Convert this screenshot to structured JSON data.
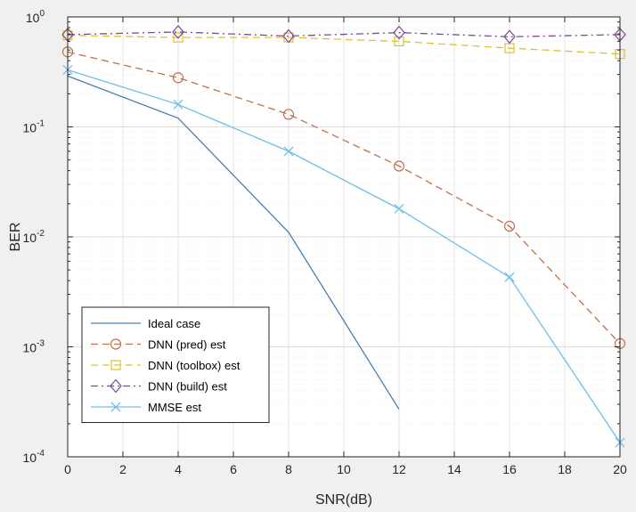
{
  "chart_data": {
    "type": "line",
    "title": "",
    "xlabel": "SNR(dB)",
    "ylabel": "BER",
    "xscale": "linear",
    "yscale": "log",
    "xlim": [
      0,
      20
    ],
    "ylim": [
      0.0001,
      1
    ],
    "xticks": [
      0,
      2,
      4,
      6,
      8,
      10,
      12,
      14,
      16,
      18,
      20
    ],
    "xtick_labels": [
      "0",
      "2",
      "4",
      "6",
      "8",
      "10",
      "12",
      "14",
      "16",
      "18",
      "20"
    ],
    "ytick_exponents": [
      "0",
      "-1",
      "-2",
      "-3",
      "-4"
    ],
    "ytick_base": "10",
    "grid": true,
    "legend_position": "bottom-left",
    "series": [
      {
        "name": "Ideal case",
        "x": [
          0,
          4,
          8,
          12
        ],
        "y": [
          0.29,
          0.12,
          0.011,
          0.00027
        ],
        "color": "#4a7fb0",
        "dash": "solid",
        "marker": "none"
      },
      {
        "name": "DNN (pred) est",
        "x": [
          0,
          4,
          8,
          12,
          16,
          20
        ],
        "y": [
          0.48,
          0.28,
          0.13,
          0.044,
          0.0125,
          0.00107
        ],
        "color": "#c0704a",
        "dash": "dashed",
        "marker": "circle"
      },
      {
        "name": "DNN (toolbox) est",
        "x": [
          0,
          4,
          8,
          12,
          16,
          20
        ],
        "y": [
          0.68,
          0.65,
          0.65,
          0.6,
          0.52,
          0.46
        ],
        "color": "#e0c030",
        "dash": "dashed",
        "marker": "square"
      },
      {
        "name": "DNN (build) est",
        "x": [
          0,
          4,
          8,
          12,
          16,
          20
        ],
        "y": [
          0.69,
          0.73,
          0.67,
          0.72,
          0.66,
          0.69
        ],
        "color": "#7e4a94",
        "dash": "dashdot",
        "marker": "diamond"
      },
      {
        "name": "MMSE est",
        "x": [
          0,
          4,
          8,
          12,
          16,
          20
        ],
        "y": [
          0.33,
          0.16,
          0.06,
          0.018,
          0.0043,
          0.000135
        ],
        "color": "#6dbfe6",
        "dash": "solid",
        "marker": "x"
      }
    ]
  }
}
